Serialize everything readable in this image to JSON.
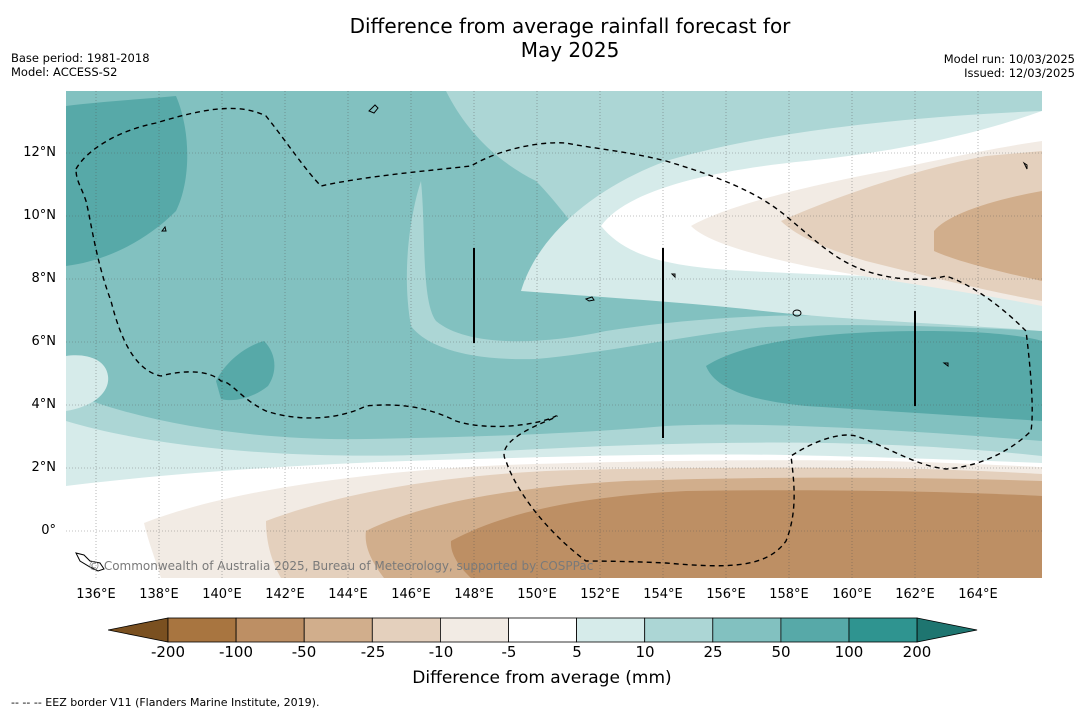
{
  "title": {
    "line1": "Difference from average rainfall forecast for",
    "line2": "May 2025"
  },
  "meta": {
    "base_period": "Base period: 1981-2018",
    "model": "Model: ACCESS-S2",
    "model_run": "Model run: 10/03/2025",
    "issued": "Issued: 12/03/2025"
  },
  "map": {
    "lat_labels": [
      "12°N",
      "10°N",
      "8°N",
      "6°N",
      "4°N",
      "2°N",
      "0°"
    ],
    "lon_labels": [
      "136°E",
      "138°E",
      "140°E",
      "142°E",
      "144°E",
      "146°E",
      "148°E",
      "150°E",
      "152°E",
      "154°E",
      "156°E",
      "158°E",
      "160°E",
      "162°E",
      "164°E"
    ],
    "copyright": "© Commonwealth of Australia 2025, Bureau of Meteorology, supported by COSPPac",
    "boundary_style": "dashed EEZ border",
    "grid": "dotted"
  },
  "colorbar": {
    "title": "Difference from average (mm)",
    "tick_labels": [
      "-200",
      "-100",
      "-50",
      "-25",
      "-10",
      "-5",
      "5",
      "10",
      "25",
      "50",
      "100",
      "200"
    ],
    "colors": [
      "#7a5020",
      "#a87540",
      "#bd8f64",
      "#d1ae8c",
      "#e4d0bd",
      "#f2ebe4",
      "#ffffff",
      "#d6ebea",
      "#acd6d5",
      "#82c1c0",
      "#57a9a8",
      "#2f9490",
      "#1e7570"
    ]
  },
  "footnote": "--  --  -- EEZ border V11 (Flanders Marine Institute, 2019)."
}
